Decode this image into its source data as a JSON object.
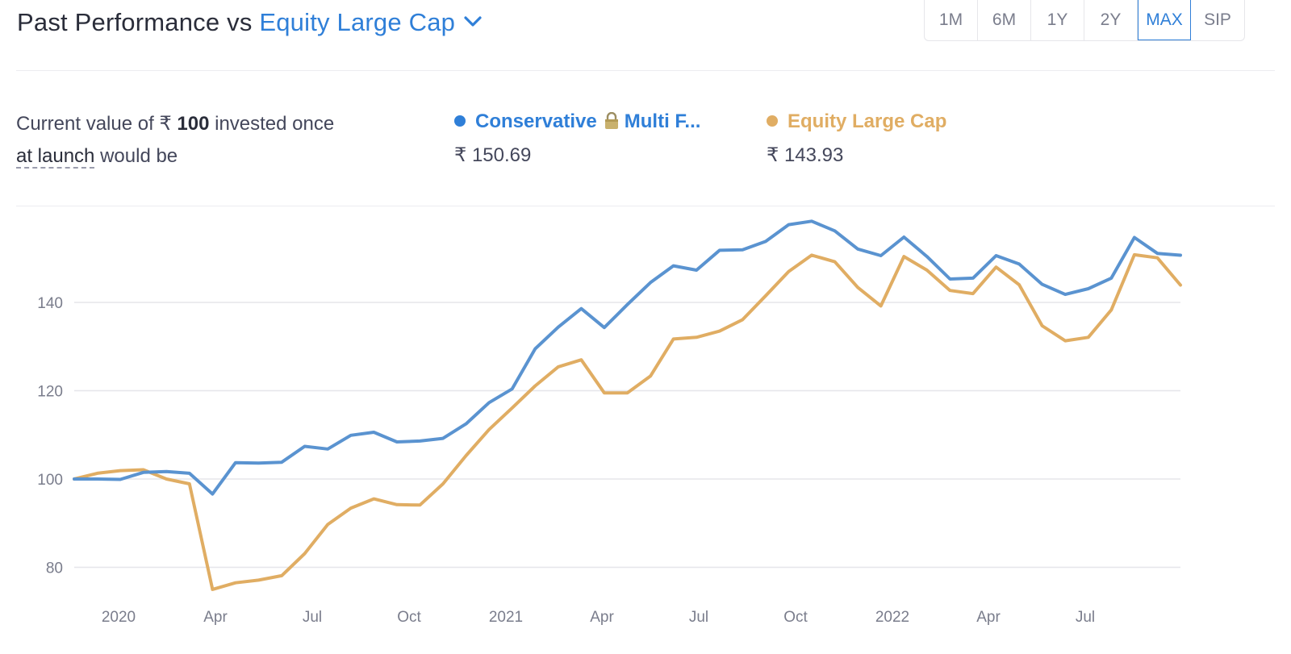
{
  "header": {
    "title_prefix": "Past Performance vs",
    "compare_label": "Equity Large Cap"
  },
  "ranges": [
    {
      "label": "1M",
      "active": false
    },
    {
      "label": "6M",
      "active": false
    },
    {
      "label": "1Y",
      "active": false
    },
    {
      "label": "2Y",
      "active": false
    },
    {
      "label": "MAX",
      "active": true
    },
    {
      "label": "SIP",
      "active": false
    }
  ],
  "summary": {
    "text_before": "Current value of",
    "currency": "₹",
    "amount": "100",
    "text_after": "invested once",
    "link": "at launch",
    "text_end": "would be"
  },
  "legend": [
    {
      "name_part1": "Conservative",
      "lock_icon": "lock-icon",
      "name_part2": "Multi F...",
      "value": "₹ 150.69",
      "color": "#2f7fd8"
    },
    {
      "name": "Equity Large Cap",
      "value": "₹ 143.93",
      "color": "#e0ad63"
    }
  ],
  "chart_data": {
    "type": "line",
    "x_tick_labels": [
      "2020",
      "Apr",
      "Jul",
      "Oct",
      "2021",
      "Apr",
      "Jul",
      "Oct",
      "2022",
      "Apr",
      "Jul"
    ],
    "y_ticks": [
      80,
      100,
      120,
      140
    ],
    "ylim": [
      75,
      160
    ],
    "grid": true,
    "legend_position": "top",
    "series": [
      {
        "name": "Conservative Multi F...",
        "color": "#5a93d0",
        "values": [
          100,
          100,
          99.9,
          101.5,
          101.7,
          101.3,
          96.6,
          103.7,
          103.6,
          103.8,
          107.4,
          106.8,
          109.9,
          110.6,
          108.4,
          108.6,
          109.2,
          112.5,
          117.3,
          120.4,
          129.5,
          134.4,
          138.6,
          134.3,
          139.5,
          144.5,
          148.3,
          147.3,
          151.8,
          151.9,
          153.8,
          157.6,
          158.4,
          156.2,
          152.1,
          150.6,
          154.8,
          150.4,
          145.3,
          145.5,
          150.6,
          148.7,
          144.1,
          141.8,
          143.1,
          145.5,
          154.7,
          151.1,
          150.69
        ]
      },
      {
        "name": "Equity Large Cap",
        "color": "#e0ad63",
        "values": [
          100,
          101.3,
          101.9,
          102.1,
          100.0,
          98.9,
          75.0,
          76.5,
          77.1,
          78.1,
          83.1,
          89.7,
          93.4,
          95.5,
          94.2,
          94.1,
          98.9,
          105.3,
          111.2,
          116.1,
          121.1,
          125.4,
          127.0,
          119.5,
          119.5,
          123.3,
          131.7,
          132.1,
          133.5,
          136.1,
          141.5,
          147.0,
          150.7,
          149.2,
          143.4,
          139.2,
          150.4,
          147.3,
          142.7,
          142.0,
          148.0,
          144.0,
          134.7,
          131.3,
          132.1,
          138.3,
          150.8,
          150.1,
          143.93
        ]
      }
    ]
  }
}
